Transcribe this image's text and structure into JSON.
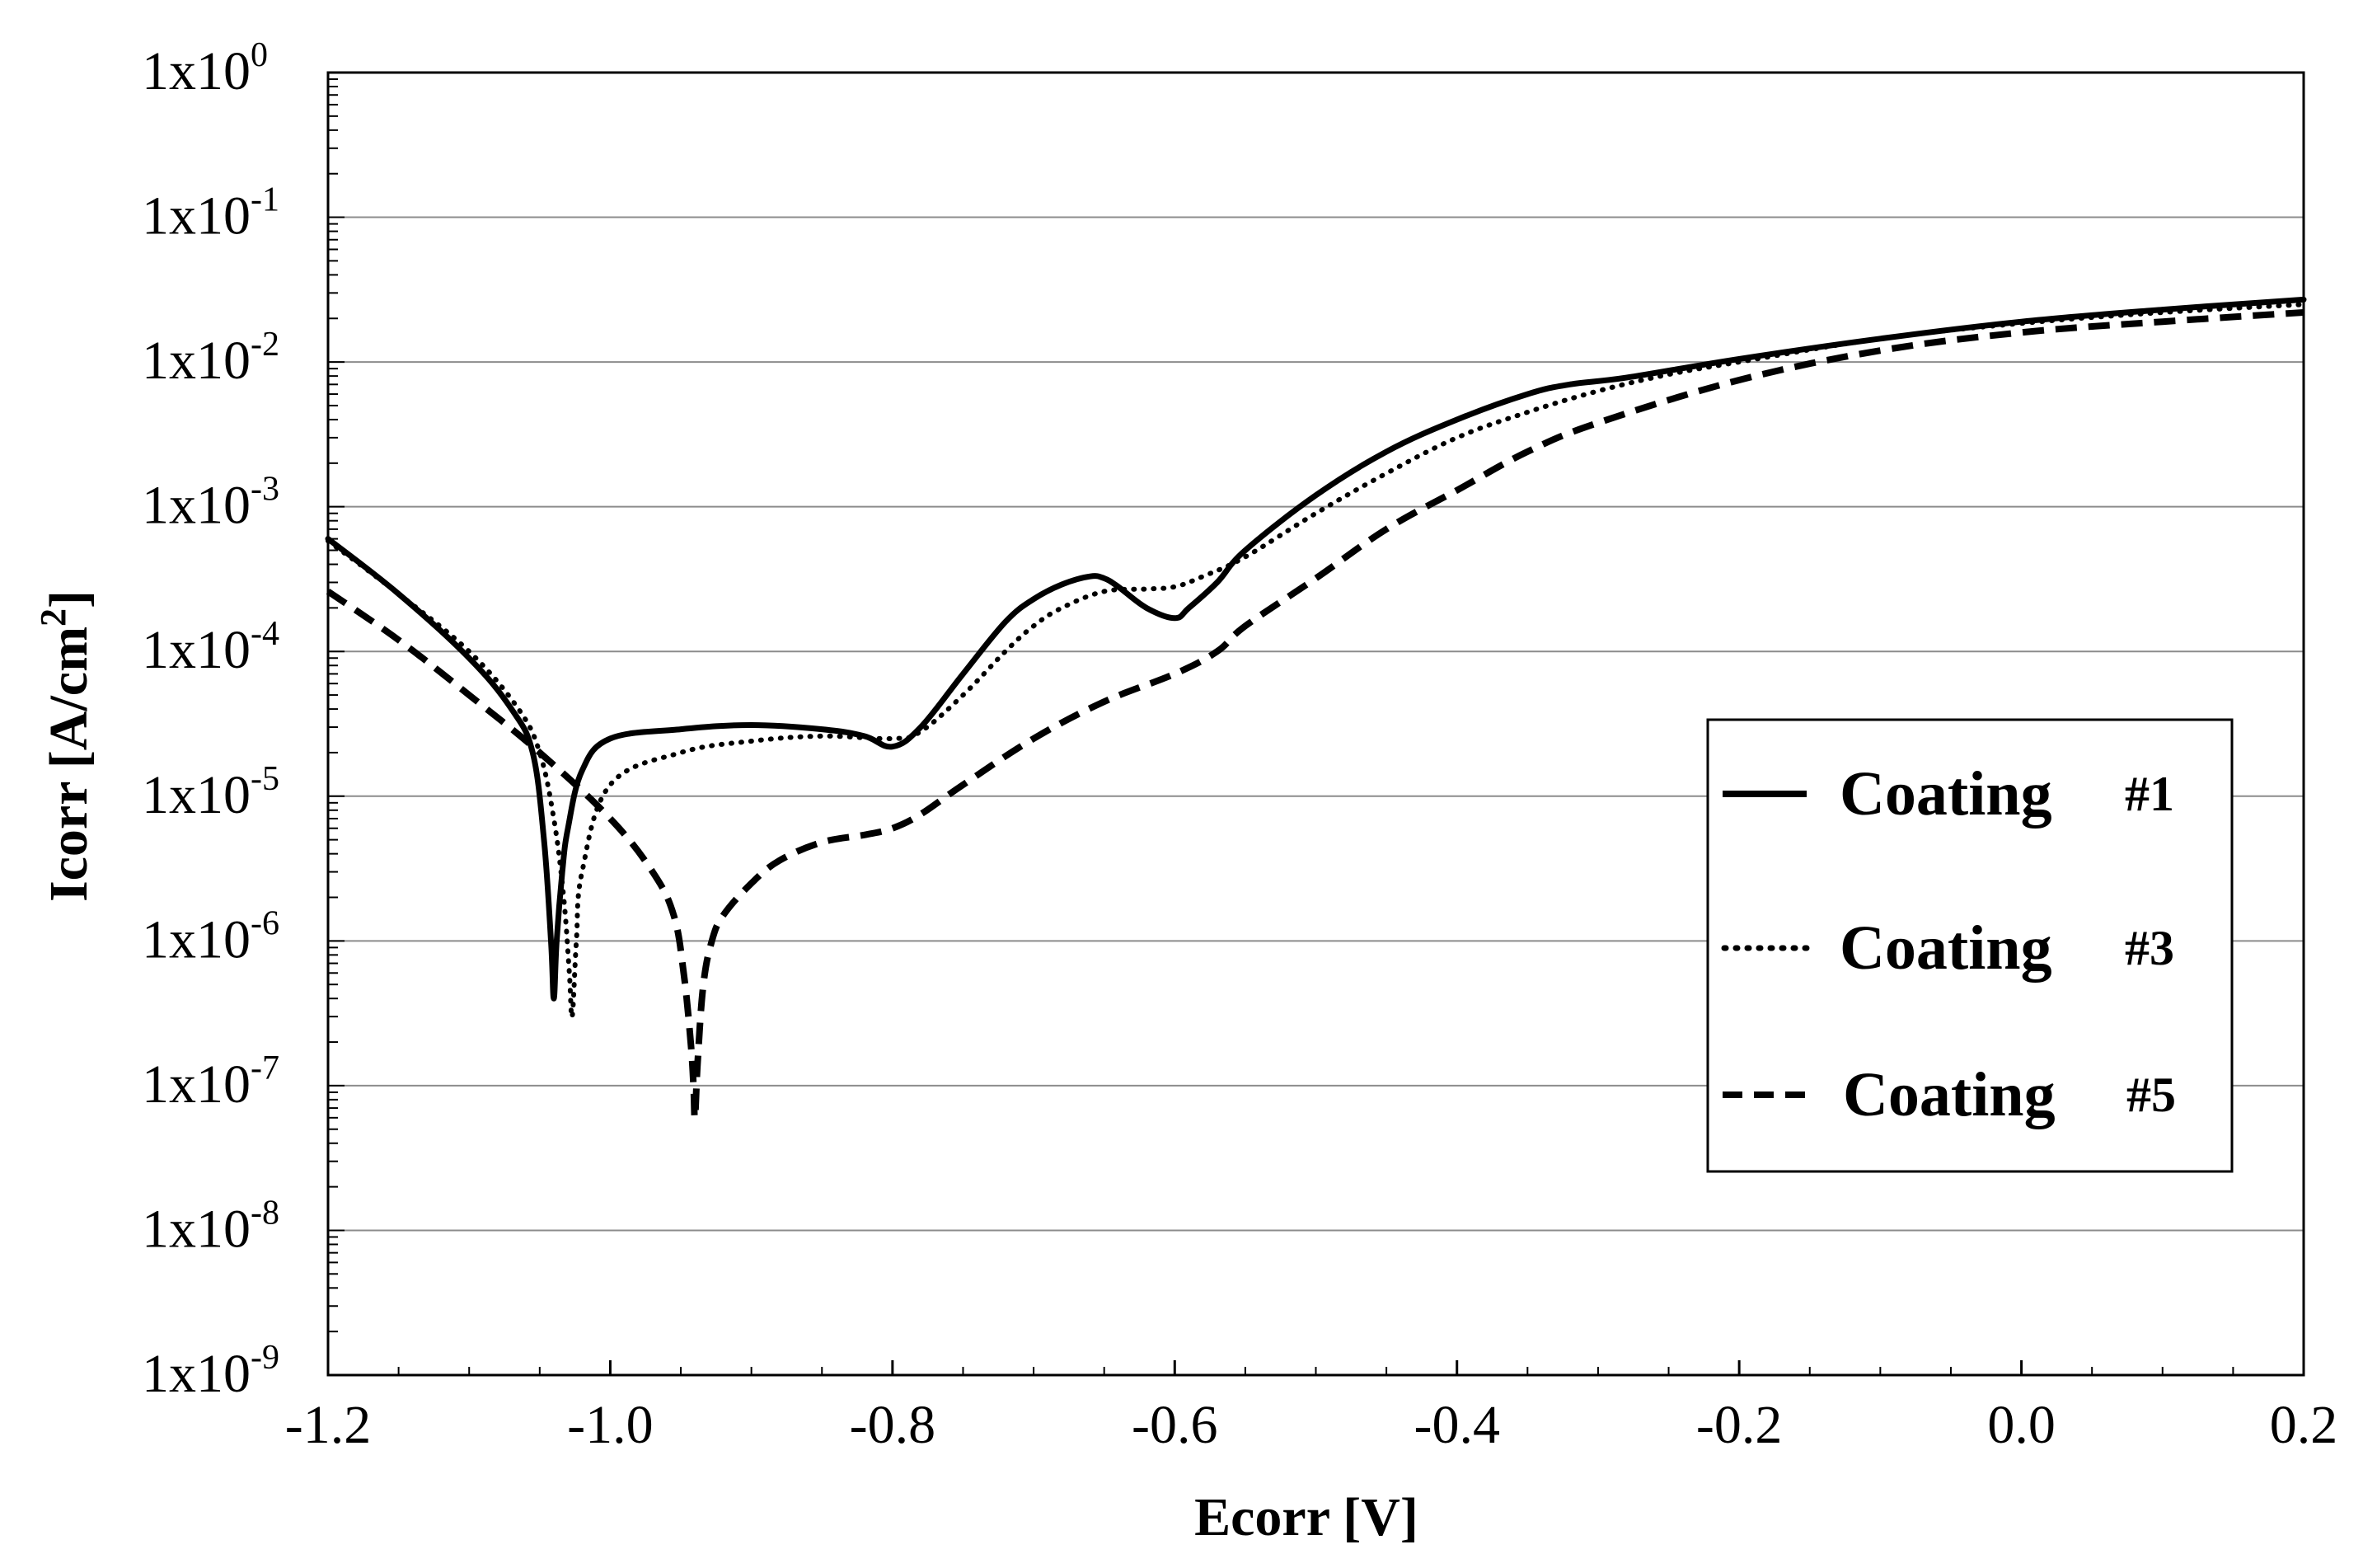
{
  "chart_data": {
    "type": "line",
    "title": "",
    "xlabel": "Ecorr [V]",
    "ylabel": "Icorr [A/cm",
    "ylabel_sup": "2",
    "ylabel_end": "]",
    "xlim": [
      -1.2,
      0.2
    ],
    "ylim_log10": [
      -9,
      0
    ],
    "yscale": "log",
    "grid": "horizontal",
    "legend_position": "right",
    "x_ticks": [
      -1.2,
      -1.0,
      -0.8,
      -0.6,
      -0.4,
      -0.2,
      0.0,
      0.2
    ],
    "x_tick_labels": [
      "-1.2",
      "-1.0",
      "-0.8",
      "-0.6",
      "-0.4",
      "-0.2",
      "0.0",
      "0.2"
    ],
    "y_ticks_exp": [
      0,
      -1,
      -2,
      -3,
      -4,
      -5,
      -6,
      -7,
      -8,
      -9
    ],
    "y_tick_base": "1x10",
    "y_tick_exponents": [
      "0",
      "-1",
      "-2",
      "-3",
      "-4",
      "-5",
      "-6",
      "-7",
      "-8",
      "-9"
    ],
    "series": [
      {
        "name": "Coating",
        "number": "#1",
        "style": "solid",
        "x": [
          -1.2,
          -1.15,
          -1.1,
          -1.07,
          -1.055,
          -1.047,
          -1.042,
          -1.04,
          -1.038,
          -1.034,
          -1.03,
          -1.02,
          -1.0,
          -0.95,
          -0.9,
          -0.85,
          -0.82,
          -0.8,
          -0.78,
          -0.75,
          -0.72,
          -0.7,
          -0.68,
          -0.66,
          -0.65,
          -0.64,
          -0.62,
          -0.6,
          -0.59,
          -0.57,
          -0.55,
          -0.5,
          -0.45,
          -0.4,
          -0.35,
          -0.32,
          -0.28,
          -0.2,
          -0.1,
          0.0,
          0.1,
          0.2
        ],
        "y": [
          0.0006,
          0.00025,
          9e-05,
          4e-05,
          2e-05,
          5e-06,
          1e-06,
          4e-07,
          1e-06,
          3e-06,
          6e-06,
          1.5e-05,
          2.5e-05,
          2.9e-05,
          3.1e-05,
          2.9e-05,
          2.6e-05,
          2.2e-05,
          3e-05,
          7e-05,
          0.00016,
          0.00023,
          0.00029,
          0.00033,
          0.00032,
          0.00028,
          0.0002,
          0.00017,
          0.0002,
          0.0003,
          0.0005,
          0.0012,
          0.0024,
          0.004,
          0.006,
          0.007,
          0.0078,
          0.0105,
          0.0145,
          0.019,
          0.023,
          0.027
        ]
      },
      {
        "name": "Coating",
        "number": "#3",
        "style": "dotted",
        "x": [
          -1.2,
          -1.15,
          -1.1,
          -1.065,
          -1.05,
          -1.04,
          -1.033,
          -1.029,
          -1.027,
          -1.024,
          -1.02,
          -1.0,
          -0.95,
          -0.9,
          -0.85,
          -0.8,
          -0.78,
          -0.75,
          -0.72,
          -0.7,
          -0.68,
          -0.65,
          -0.62,
          -0.6,
          -0.58,
          -0.55,
          -0.5,
          -0.45,
          -0.4,
          -0.35,
          -0.3,
          -0.25,
          -0.2,
          -0.1,
          0.0,
          0.1,
          0.2
        ],
        "y": [
          0.00058,
          0.00025,
          0.0001,
          4e-05,
          2e-05,
          7e-06,
          2e-06,
          6e-07,
          3e-07,
          1e-06,
          3e-06,
          1.2e-05,
          2e-05,
          2.4e-05,
          2.6e-05,
          2.5e-05,
          2.8e-05,
          5e-05,
          0.0001,
          0.00015,
          0.0002,
          0.00026,
          0.00027,
          0.00028,
          0.00033,
          0.00045,
          0.0009,
          0.0017,
          0.003,
          0.0045,
          0.0063,
          0.0082,
          0.01,
          0.0145,
          0.0185,
          0.022,
          0.025
        ]
      },
      {
        "name": "Coating",
        "number": "#5",
        "style": "dashed",
        "x": [
          -1.2,
          -1.15,
          -1.1,
          -1.05,
          -1.0,
          -0.97,
          -0.955,
          -0.948,
          -0.943,
          -0.941,
          -0.94,
          -0.938,
          -0.934,
          -0.928,
          -0.92,
          -0.9,
          -0.88,
          -0.85,
          -0.82,
          -0.8,
          -0.78,
          -0.75,
          -0.7,
          -0.65,
          -0.6,
          -0.57,
          -0.55,
          -0.5,
          -0.45,
          -0.4,
          -0.35,
          -0.3,
          -0.2,
          -0.1,
          0.0,
          0.1,
          0.2
        ],
        "y": [
          0.00026,
          0.00012,
          5e-05,
          2e-05,
          7e-06,
          3e-06,
          1.5e-06,
          6e-07,
          2e-07,
          1e-07,
          6e-08,
          1.5e-07,
          5e-07,
          1e-06,
          1.5e-06,
          2.5e-06,
          3.6e-06,
          4.8e-06,
          5.4e-06,
          6e-06,
          7.5e-06,
          1.2e-05,
          2.5e-05,
          4.5e-05,
          7e-05,
          0.0001,
          0.00015,
          0.00032,
          0.0007,
          0.0013,
          0.0024,
          0.0038,
          0.0075,
          0.012,
          0.016,
          0.019,
          0.022
        ]
      }
    ]
  }
}
